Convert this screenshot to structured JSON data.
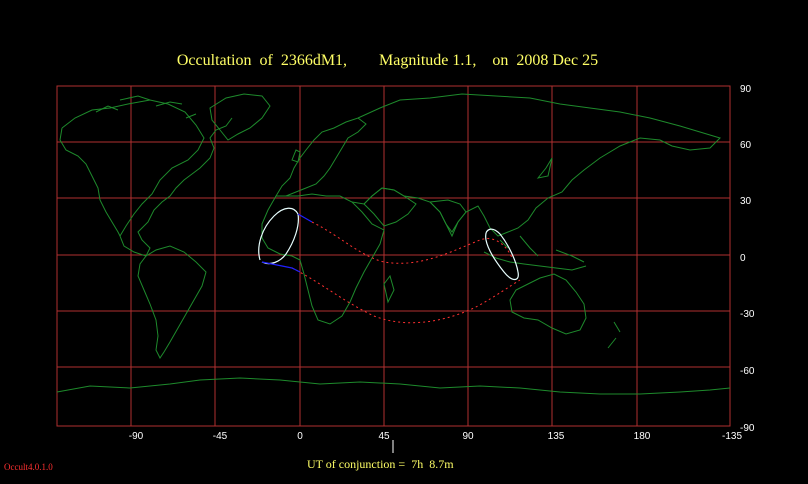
{
  "title": {
    "text": "Occultation  of  2366dM1,        Magnitude 1.1,    on  2008 Dec 25"
  },
  "footer": {
    "ut_conjunction": "UT of conjunction =  7h  8.7m",
    "version": "Occult4.0.1.0"
  },
  "axes": {
    "longitude_ticks": [
      "-90",
      "-45",
      "0",
      "45",
      "90",
      "135",
      "180",
      "-135"
    ],
    "latitude_ticks": [
      "90",
      "60",
      "30",
      "0",
      "-30",
      "-60",
      "-90"
    ]
  },
  "colors": {
    "background": "#000000",
    "grid": "#b03030",
    "coast": "#1e8a2c",
    "path_limits": "#ff3030",
    "shadow_outline": "#e8ffff",
    "night_side": "#2020ff",
    "title": "#ffff66",
    "ticks": "#ffffff"
  }
}
